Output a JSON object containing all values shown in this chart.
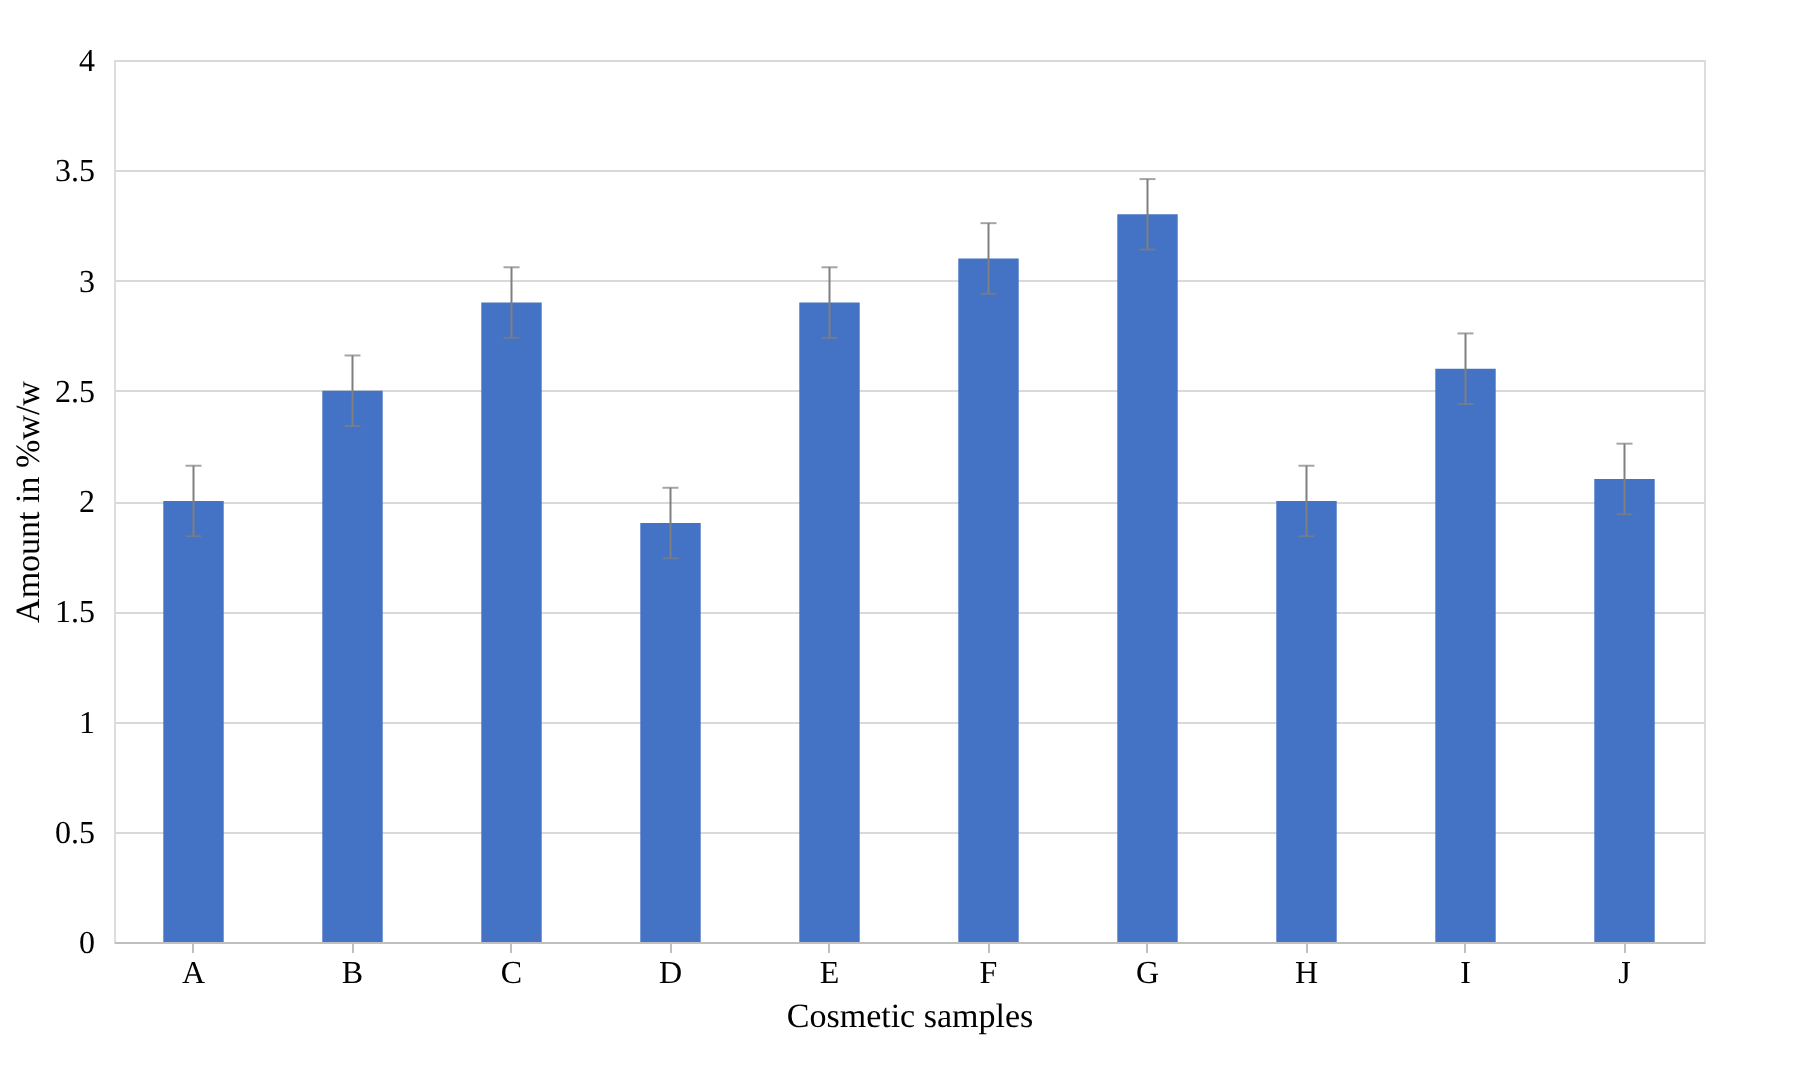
{
  "chart_data": {
    "type": "bar",
    "xlabel": "Cosmetic samples",
    "ylabel": "Amount in %w/w",
    "categories": [
      "A",
      "B",
      "C",
      "D",
      "E",
      "F",
      "G",
      "H",
      "I",
      "J"
    ],
    "values": [
      2.0,
      2.5,
      2.9,
      1.9,
      2.9,
      3.1,
      3.3,
      2.0,
      2.6,
      2.1
    ],
    "errors": [
      0.16,
      0.16,
      0.16,
      0.16,
      0.16,
      0.16,
      0.16,
      0.16,
      0.16,
      0.16
    ],
    "color": "#4472c4",
    "ylim": [
      0,
      4
    ],
    "yticks": [
      0,
      0.5,
      1,
      1.5,
      2,
      2.5,
      3,
      3.5,
      4
    ],
    "grid": "y"
  }
}
